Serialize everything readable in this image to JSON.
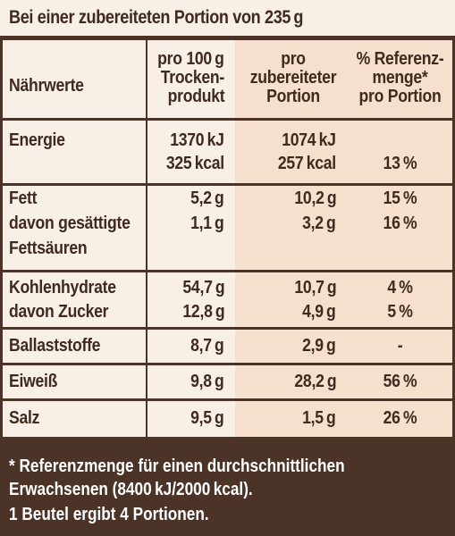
{
  "header": {
    "title": "Bei einer zubereiteten Portion von 235 g"
  },
  "columns": {
    "nutrient": "Nährwerte",
    "per100_l1": "pro 100 g",
    "per100_l2": "Trocken-",
    "per100_l3": "produkt",
    "portion_l1": "pro",
    "portion_l2": "zubereiteter",
    "portion_l3": "Portion",
    "ri_l1": "% Referenz-",
    "ri_l2": "menge*",
    "ri_l3": "pro Portion"
  },
  "rows": [
    {
      "name": "Energie",
      "per100": "1370 kJ",
      "portion": "1074 kJ",
      "ri": ""
    },
    {
      "name": "",
      "per100": "325 kcal",
      "portion": "257 kcal",
      "ri": "13 %"
    },
    {
      "name": "Fett",
      "per100": "5,2 g",
      "portion": "10,2 g",
      "ri": "15 %"
    },
    {
      "name": "davon gesättigte",
      "per100": "1,1 g",
      "portion": "3,2 g",
      "ri": "16 %"
    },
    {
      "name": "Fettsäuren",
      "per100": "",
      "portion": "",
      "ri": ""
    },
    {
      "name": "Kohlenhydrate",
      "per100": "54,7 g",
      "portion": "10,7 g",
      "ri": "4 %"
    },
    {
      "name": "davon Zucker",
      "per100": "12,8 g",
      "portion": "4,9 g",
      "ri": "5 %"
    },
    {
      "name": "Ballaststoffe",
      "per100": "8,7 g",
      "portion": "2,9 g",
      "ri": "-"
    },
    {
      "name": "Eiweiß",
      "per100": "9,8 g",
      "portion": "28,2 g",
      "ri": "56 %"
    },
    {
      "name": "Salz",
      "per100": "9,5 g",
      "portion": "1,5 g",
      "ri": "26 %"
    }
  ],
  "footer": {
    "line1": "* Referenzmenge für einen durchschnittlichen",
    "line2": "Erwachsenen (8400 kJ/2000 kcal).",
    "line3": "1 Beutel ergibt 4 Portionen."
  },
  "colors": {
    "dark_brown": "#4b3327",
    "cream": "#f8efe6",
    "peach": "#f6dfcc"
  }
}
